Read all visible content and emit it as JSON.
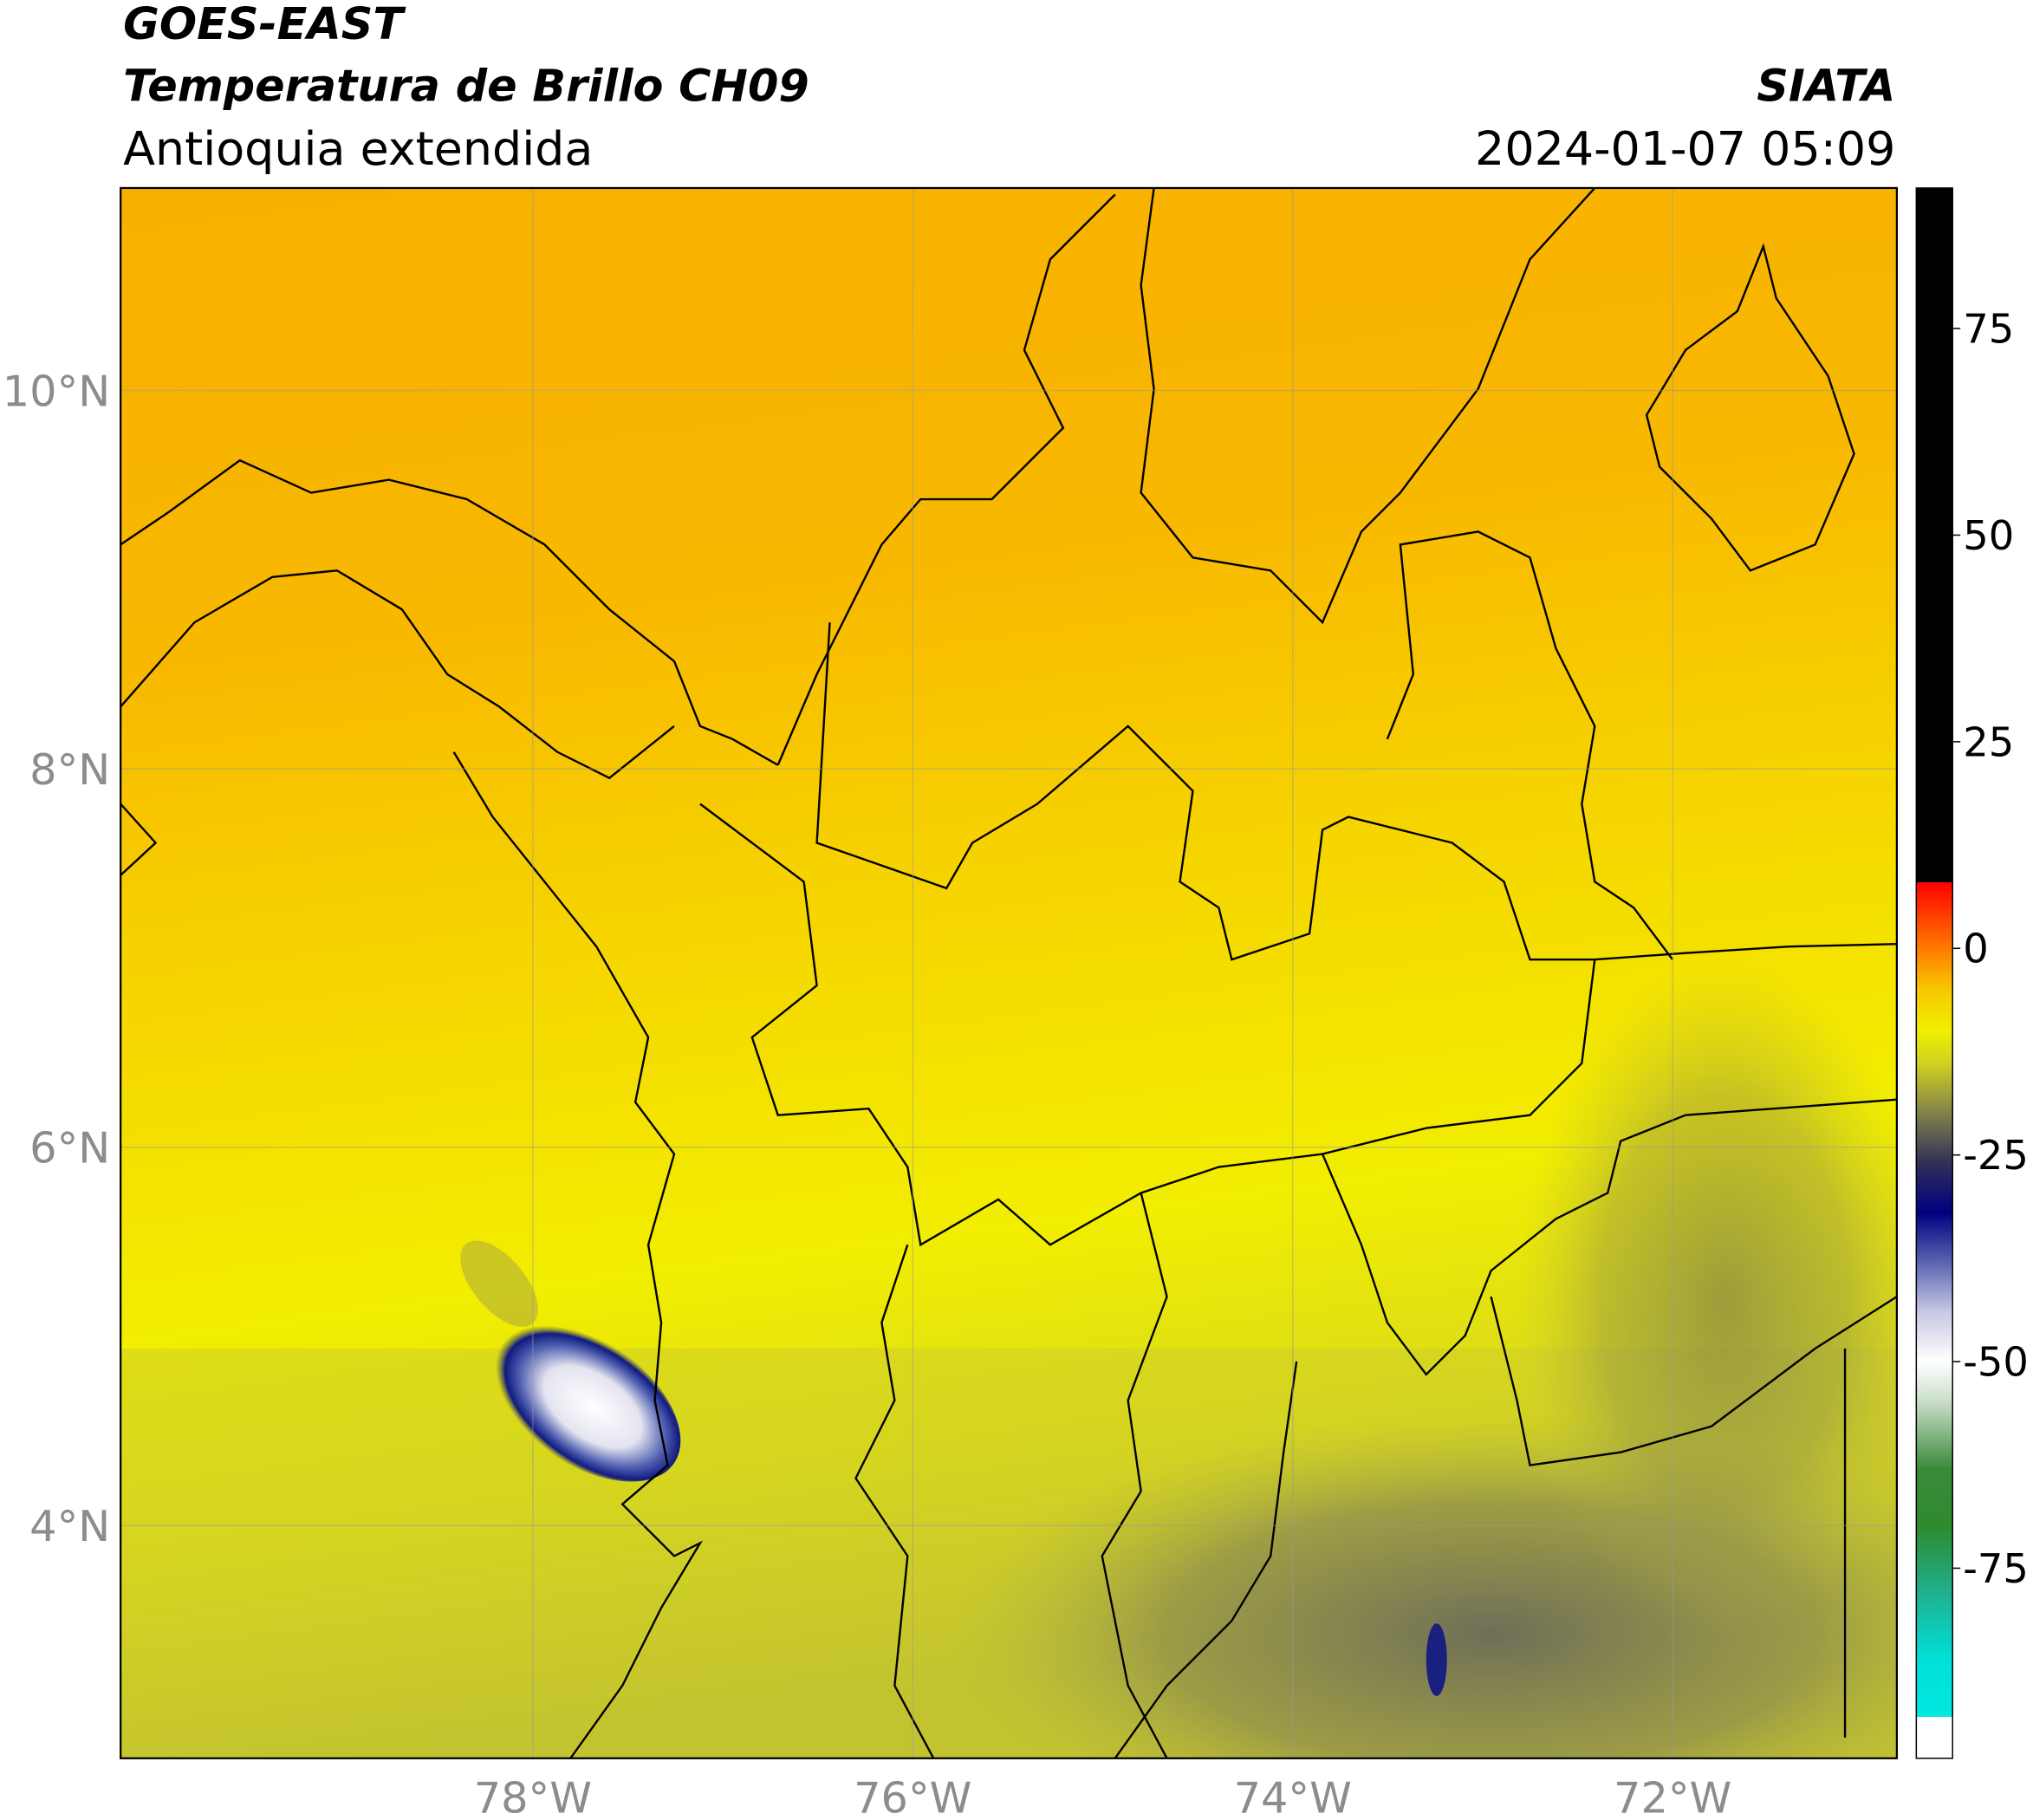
{
  "header": {
    "title": "GOES-EAST",
    "subtitle": "Temperatura de Brillo CH09",
    "region": "Antioquia extendida",
    "source": "SIATA",
    "timestamp": "2024-01-07 05:09"
  },
  "map": {
    "lat_lim": [
      2.77,
      11.07
    ],
    "lon_lim": [
      -80.17,
      -70.82
    ],
    "lat_ticks": [
      {
        "value": 10,
        "label": "10°N"
      },
      {
        "value": 8,
        "label": "8°N"
      },
      {
        "value": 6,
        "label": "6°N"
      },
      {
        "value": 4,
        "label": "4°N"
      }
    ],
    "lon_ticks": [
      {
        "value": -78,
        "label": "78°W"
      },
      {
        "value": -76,
        "label": "76°W"
      },
      {
        "value": -74,
        "label": "74°W"
      },
      {
        "value": -72,
        "label": "72°W"
      }
    ],
    "grid": true
  },
  "colorbar": {
    "lim": [
      -98,
      92
    ],
    "ticks": [
      75,
      50,
      25,
      0,
      -25,
      -50,
      -75
    ],
    "stops": [
      {
        "value": -98,
        "color": "#ffffff"
      },
      {
        "value": -93,
        "color": "#ffffff"
      },
      {
        "value": -93,
        "color": "#00e8e0"
      },
      {
        "value": -86,
        "color": "#00e0d8"
      },
      {
        "value": -78,
        "color": "#20b090"
      },
      {
        "value": -70,
        "color": "#2e8b2e"
      },
      {
        "value": -63,
        "color": "#3a8a3a"
      },
      {
        "value": -55,
        "color": "#c8dcc8"
      },
      {
        "value": -50,
        "color": "#ffffff"
      },
      {
        "value": -44,
        "color": "#c8c8e4"
      },
      {
        "value": -38,
        "color": "#5a64b0"
      },
      {
        "value": -32,
        "color": "#000080"
      },
      {
        "value": -26,
        "color": "#303058"
      },
      {
        "value": -20,
        "color": "#80804a"
      },
      {
        "value": -14,
        "color": "#d0d020"
      },
      {
        "value": -10,
        "color": "#f0f000"
      },
      {
        "value": -5,
        "color": "#f8c800"
      },
      {
        "value": 0,
        "color": "#ff7a00"
      },
      {
        "value": 8,
        "color": "#ff0000"
      },
      {
        "value": 8,
        "color": "#000000"
      },
      {
        "value": 92,
        "color": "#000000"
      }
    ]
  }
}
